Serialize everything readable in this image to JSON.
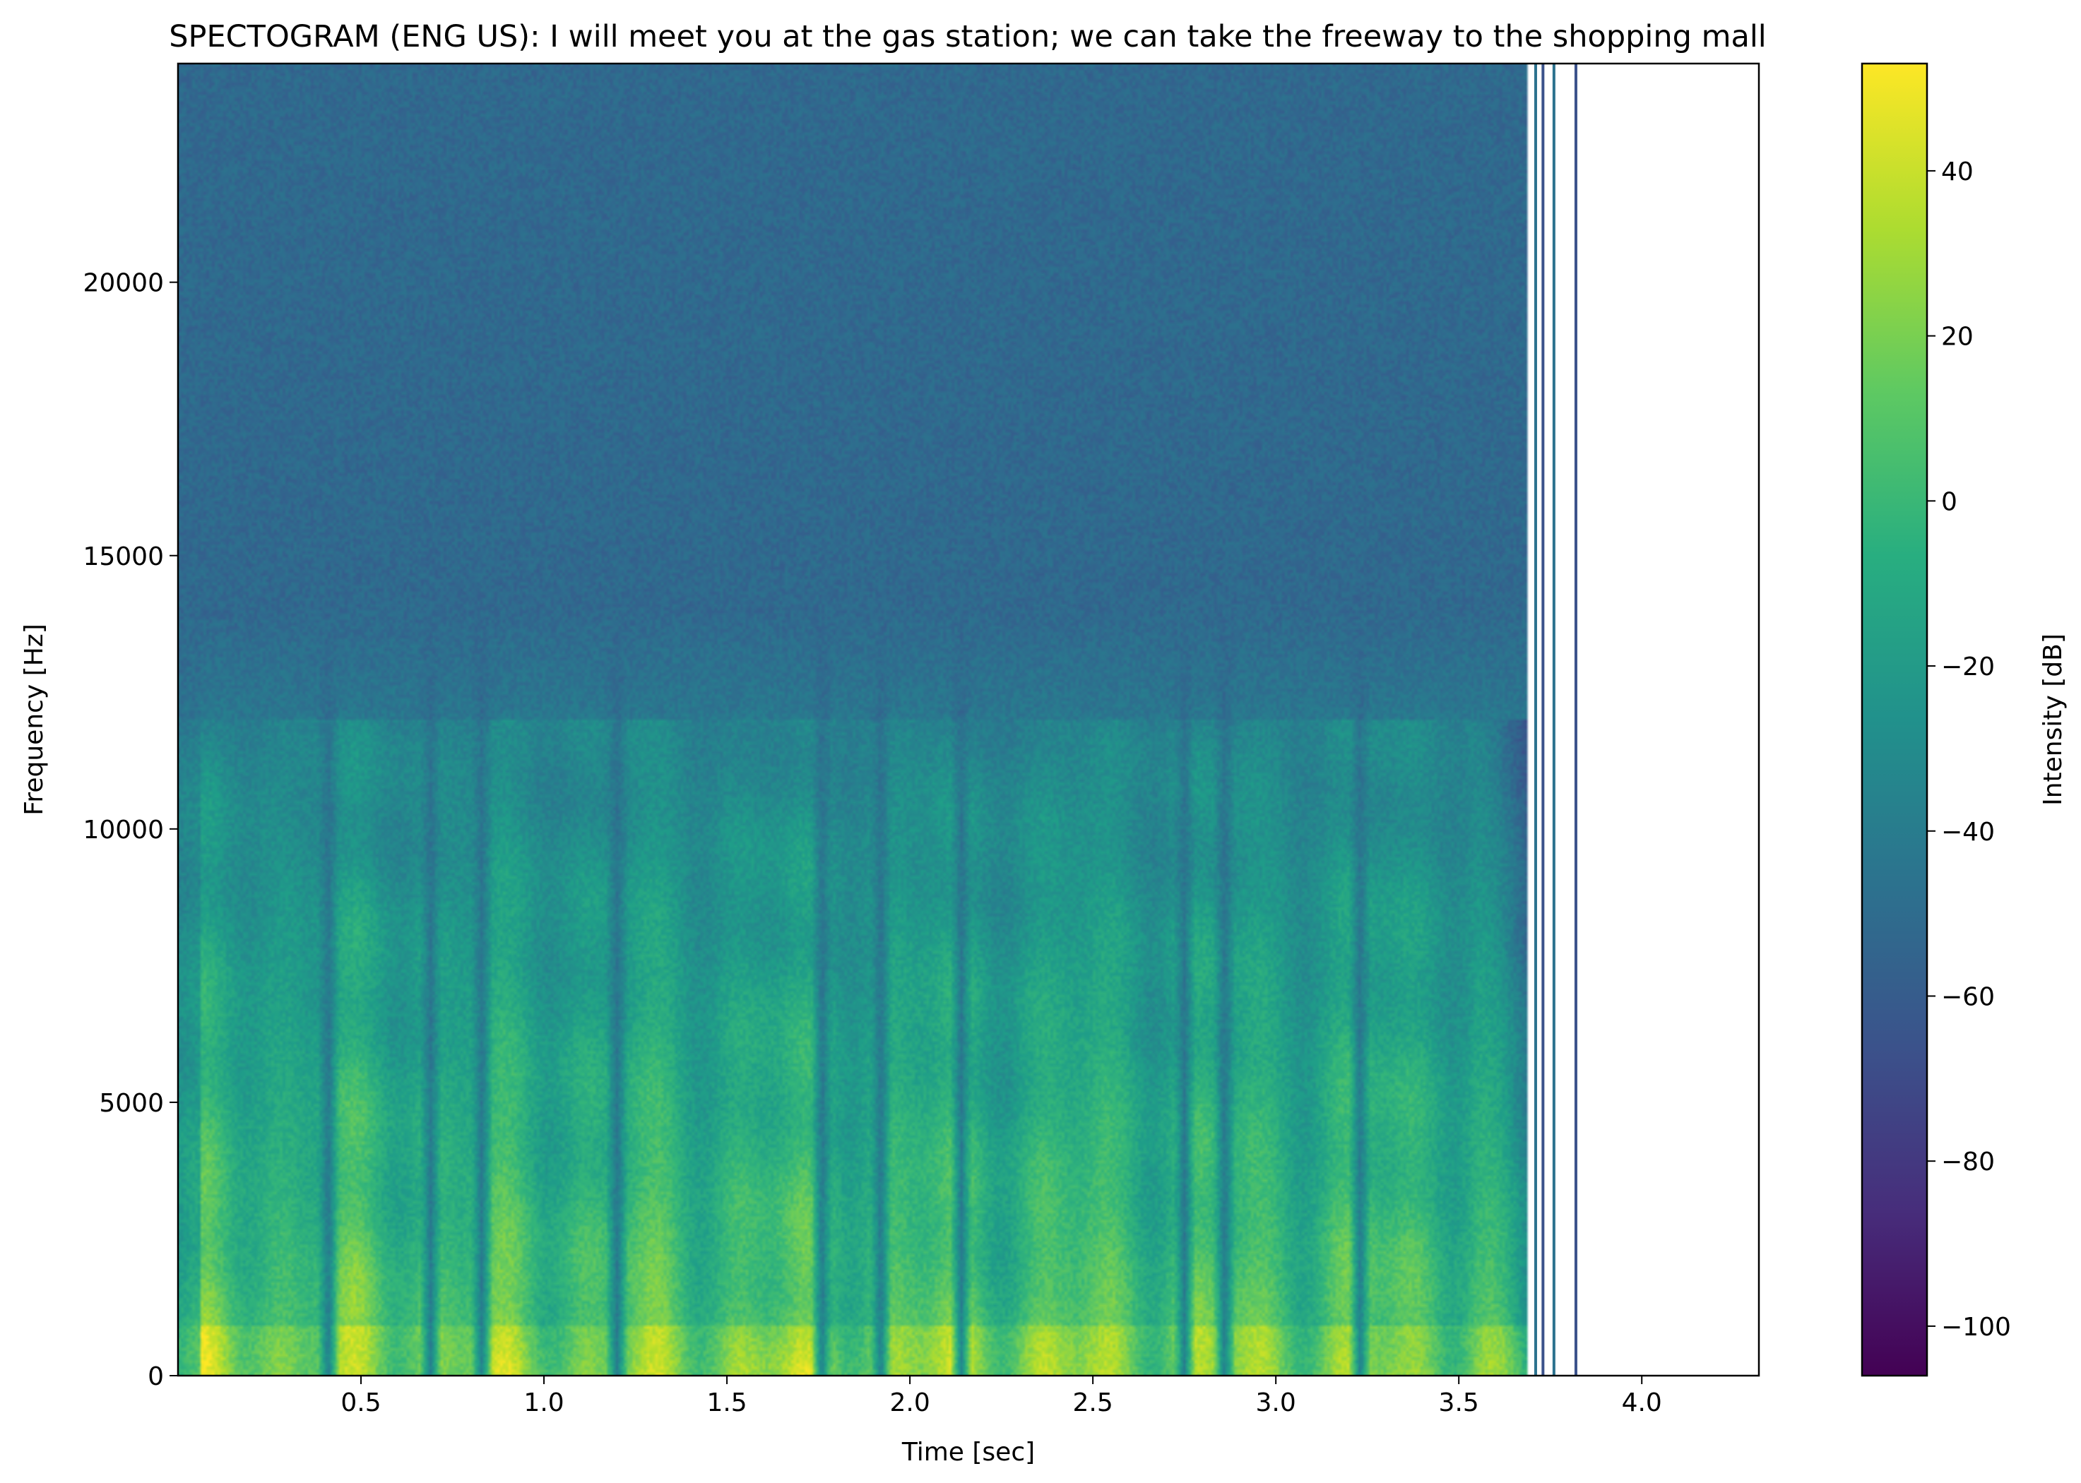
{
  "chart_data": {
    "type": "heatmap",
    "title": "SPECTOGRAM (ENG US): I will meet you at the gas station; we can take the freeway to the shopping mall",
    "xlabel": "Time [sec]",
    "ylabel": "Frequency [Hz]",
    "colorbar_label": "Intensity [dB]",
    "colormap": "viridis",
    "xlim": [
      0.0,
      4.32
    ],
    "ylim": [
      0,
      24000
    ],
    "clim": [
      -106,
      53
    ],
    "data_end_sec": 3.69,
    "x_ticks": [
      0.5,
      1.0,
      1.5,
      2.0,
      2.5,
      3.0,
      3.5,
      4.0
    ],
    "x_tick_labels": [
      "0.5",
      "1.0",
      "1.5",
      "2.0",
      "2.5",
      "3.0",
      "3.5",
      "4.0"
    ],
    "y_ticks": [
      0,
      5000,
      10000,
      15000,
      20000
    ],
    "y_tick_labels": [
      "0",
      "5000",
      "10000",
      "15000",
      "20000"
    ],
    "cbar_ticks": [
      40,
      20,
      0,
      -20,
      -40,
      -60,
      -80,
      -100
    ],
    "cbar_tick_labels": [
      "40",
      "20",
      "0",
      "−20",
      "−40",
      "−60",
      "−80",
      "−100"
    ],
    "silence_gaps_sec": [
      0.41,
      0.69,
      0.83,
      1.2,
      1.76,
      1.92,
      2.14,
      2.75,
      2.86,
      3.23
    ],
    "trailing_lines_sec": [
      3.71,
      3.73,
      3.76,
      3.82
    ],
    "background_level_db": -55,
    "speech_band_hz": [
      0,
      12000
    ]
  }
}
